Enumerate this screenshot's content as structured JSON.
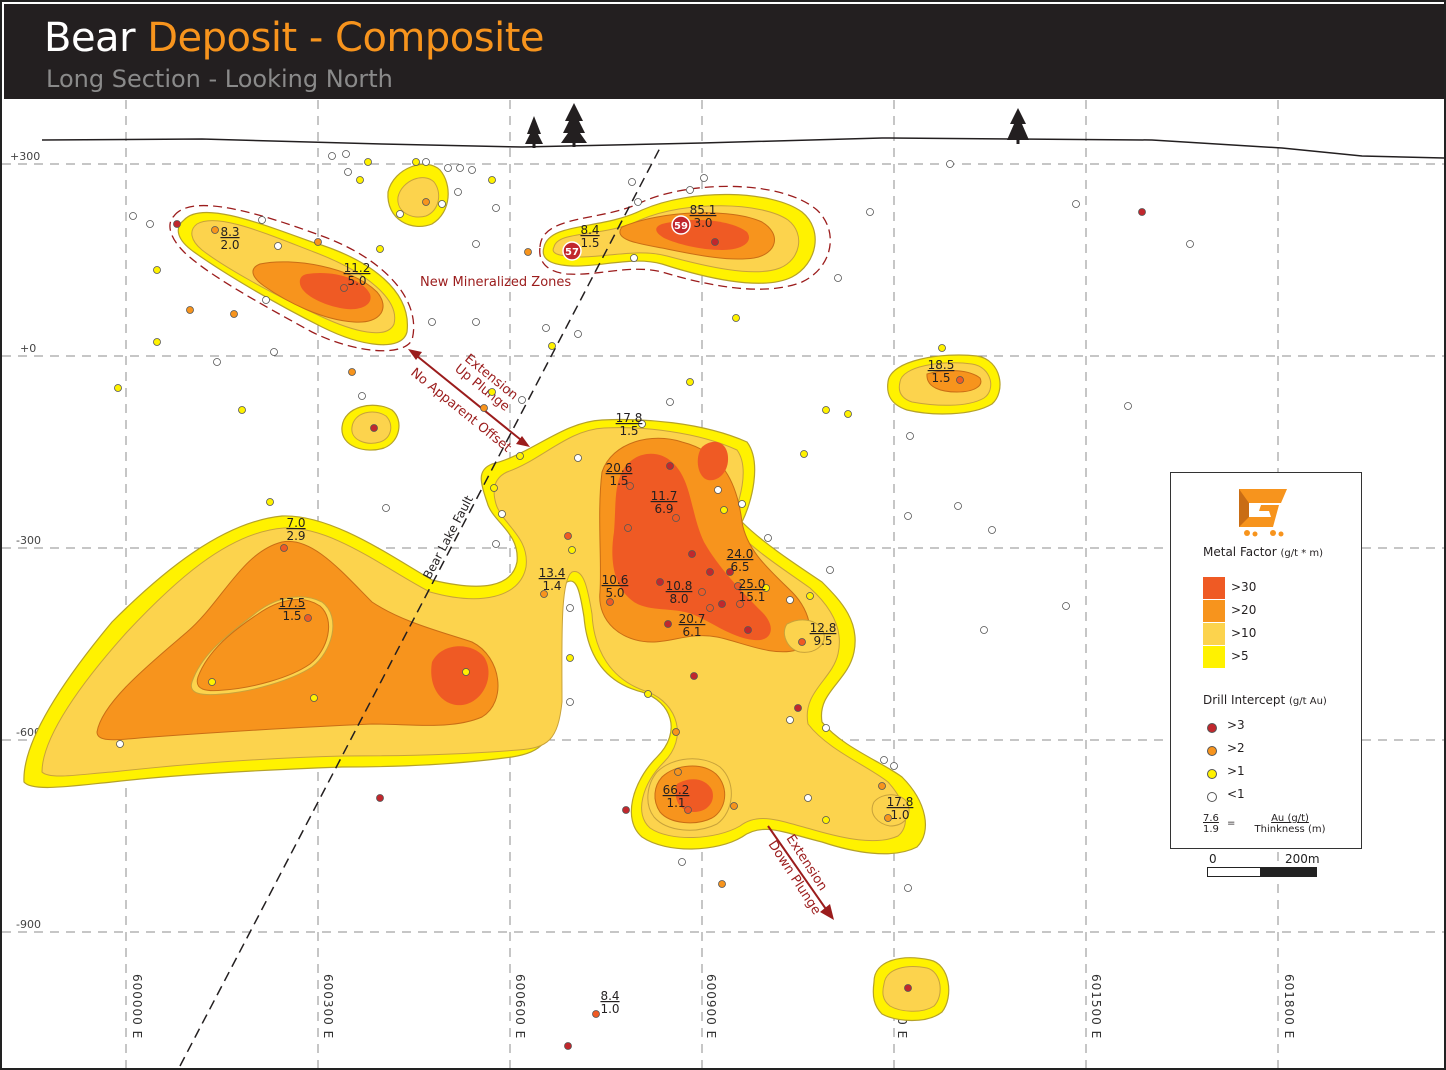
{
  "header": {
    "title_part1": "Bear ",
    "title_part2": "Deposit - Composite",
    "subtitle": "Long Section - Looking North",
    "title_color_primary": "#ffffff",
    "title_color_accent": "#f7941d",
    "background_color": "#231f20"
  },
  "elevations": [
    "+300",
    "+0",
    "-300",
    "-600",
    "-900"
  ],
  "eastings": [
    "600000 E",
    "600300 E",
    "600600 E",
    "600900 E",
    "601200 E",
    "601500 E",
    "601800 E"
  ],
  "labels": {
    "fault": "Bear Lake Fault",
    "new_zones": "New Mineralized Zones",
    "ext_up_1": "Extension",
    "ext_up_2": "Up Plunge",
    "ext_up_3": "No Apparent Offset",
    "ext_down_1": "Extension",
    "ext_down_2": "Down Plunge"
  },
  "highlight_holes": [
    "57",
    "59"
  ],
  "intercepts": [
    {
      "au": "8.3",
      "thk": "2.0"
    },
    {
      "au": "11.2",
      "thk": "5.0"
    },
    {
      "au": "8.4",
      "thk": "1.5"
    },
    {
      "au": "85.1",
      "thk": "3.0"
    },
    {
      "au": "18.5",
      "thk": "1.5"
    },
    {
      "au": "17.8",
      "thk": "1.5"
    },
    {
      "au": "20.6",
      "thk": "1.5"
    },
    {
      "au": "11.7",
      "thk": "6.9"
    },
    {
      "au": "7.0",
      "thk": "2.9"
    },
    {
      "au": "17.5",
      "thk": "1.5"
    },
    {
      "au": "13.4",
      "thk": "1.4"
    },
    {
      "au": "10.6",
      "thk": "5.0"
    },
    {
      "au": "10.8",
      "thk": "8.0"
    },
    {
      "au": "24.0",
      "thk": "6.5"
    },
    {
      "au": "25.0",
      "thk": "15.1"
    },
    {
      "au": "20.7",
      "thk": "6.1"
    },
    {
      "au": "12.8",
      "thk": "9.5"
    },
    {
      "au": "66.2",
      "thk": "1.1"
    },
    {
      "au": "17.8",
      "thk": "1.0"
    },
    {
      "au": "8.4",
      "thk": "1.0"
    }
  ],
  "legend": {
    "logo_icon": "g-logo-icon",
    "metal_factor_title": "Metal Factor",
    "metal_factor_unit": "(g/t * m)",
    "metal_factor": [
      {
        "label": ">30",
        "color": "#ef5a24"
      },
      {
        "label": ">20",
        "color": "#f7941d"
      },
      {
        "label": ">10",
        "color": "#fcd34d"
      },
      {
        "label": ">5",
        "color": "#fff200"
      }
    ],
    "drill_title": "Drill Intercept",
    "drill_unit": "(g/t Au)",
    "drill": [
      {
        "label": ">3",
        "color": "#c1272d"
      },
      {
        "label": ">2",
        "color": "#f7941d"
      },
      {
        "label": ">1",
        "color": "#fff200"
      },
      {
        "label": "<1",
        "color": "#ffffff"
      }
    ],
    "formula_top": "7.6",
    "formula_bottom": "1.9",
    "formula_eq": "=",
    "formula_num": "Au (g/t)",
    "formula_den": "Thinkness (m)"
  },
  "scale": {
    "start": "0",
    "end": "200m"
  }
}
